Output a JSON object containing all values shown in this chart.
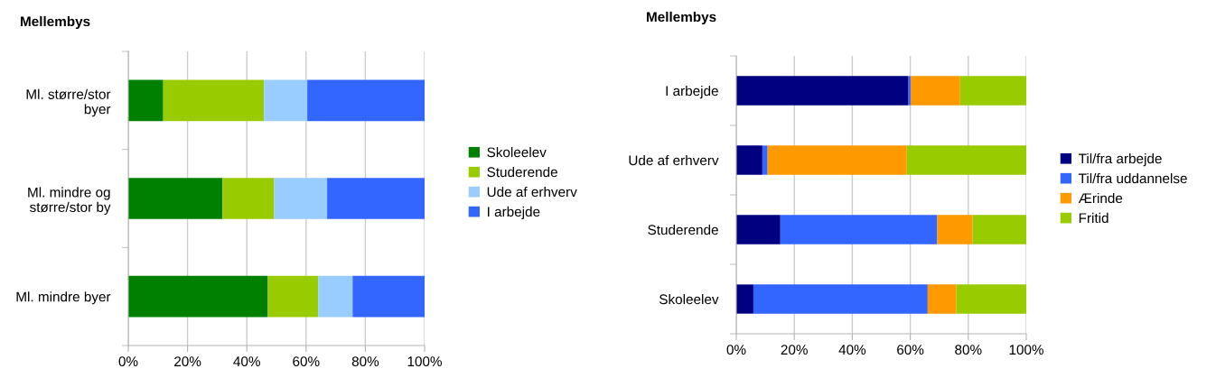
{
  "chart_data": [
    {
      "type": "bar",
      "orientation": "horizontal",
      "stacked": true,
      "title": "Mellembys",
      "categories": [
        "Ml. større/stor\nbyer",
        "Ml. mindre og\nstørre/stor by",
        "Ml. mindre byer"
      ],
      "series": [
        {
          "name": "Skoleelev",
          "color": "#008000",
          "values": [
            11.8,
            31.8,
            47.1
          ]
        },
        {
          "name": "Studerende",
          "color": "#99cc00",
          "values": [
            34,
            17.4,
            17
          ]
        },
        {
          "name": "Ude af erhverv",
          "color": "#99ccff",
          "values": [
            14.6,
            17.9,
            11.6
          ]
        },
        {
          "name": "I arbejde",
          "color": "#3366ff",
          "values": [
            39.6,
            32.9,
            24.3
          ]
        }
      ],
      "xlim": [
        0,
        100
      ],
      "xticks": [
        {
          "value": 0,
          "label": "0%"
        },
        {
          "value": 20,
          "label": "20%"
        },
        {
          "value": 40,
          "label": "40%"
        },
        {
          "value": 60,
          "label": "60%"
        },
        {
          "value": 80,
          "label": "80%"
        },
        {
          "value": 100,
          "label": "100%"
        }
      ],
      "grid": "x",
      "legend": "right"
    },
    {
      "type": "bar",
      "orientation": "horizontal",
      "stacked": true,
      "title": "Mellembys",
      "categories": [
        "I arbejde",
        "Ude af erhverv",
        "Studerende",
        "Skoleelev"
      ],
      "series": [
        {
          "name": "Til/fra arbejde",
          "color": "#000080",
          "values": [
            59.2,
            9.0,
            15.2,
            5.9
          ]
        },
        {
          "name": "Til/fra uddannelse",
          "color": "#3366ff",
          "values": [
            0.9,
            1.8,
            54.1,
            60.1
          ]
        },
        {
          "name": "Ærinde",
          "color": "#ff9900",
          "values": [
            17.1,
            48,
            12.2,
            9.9
          ]
        },
        {
          "name": "Fritid",
          "color": "#99cc00",
          "values": [
            22.8,
            41.2,
            18.5,
            24.1
          ]
        }
      ],
      "xlim": [
        0,
        100
      ],
      "xticks": [
        {
          "value": 0,
          "label": "0%"
        },
        {
          "value": 20,
          "label": "20%"
        },
        {
          "value": 40,
          "label": "40%"
        },
        {
          "value": 60,
          "label": "60%"
        },
        {
          "value": 80,
          "label": "80%"
        },
        {
          "value": 100,
          "label": "100%"
        }
      ],
      "grid": "x",
      "legend": "right"
    }
  ]
}
